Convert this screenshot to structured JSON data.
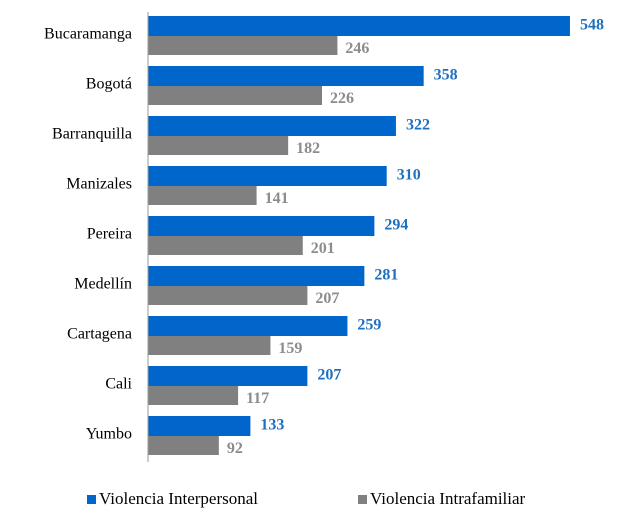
{
  "chart_data": {
    "type": "barh",
    "categories": [
      "Bucaramanga",
      "Bogotá",
      "Barranquilla",
      "Manizales",
      "Pereira",
      "Medellín",
      "Cartagena",
      "Cali",
      "Yumbo"
    ],
    "series": [
      {
        "name": "Violencia Interpersonal",
        "color": "#0066cc",
        "values": [
          548,
          358,
          322,
          310,
          294,
          281,
          259,
          207,
          133
        ]
      },
      {
        "name": "Violencia Intrafamiliar",
        "color": "#808080",
        "values": [
          246,
          226,
          182,
          141,
          201,
          207,
          159,
          117,
          92
        ]
      }
    ],
    "label_colors": [
      "#1f6fbf",
      "#8c8c8c"
    ],
    "xlim": [
      0,
      600
    ],
    "legend": "bottom"
  }
}
